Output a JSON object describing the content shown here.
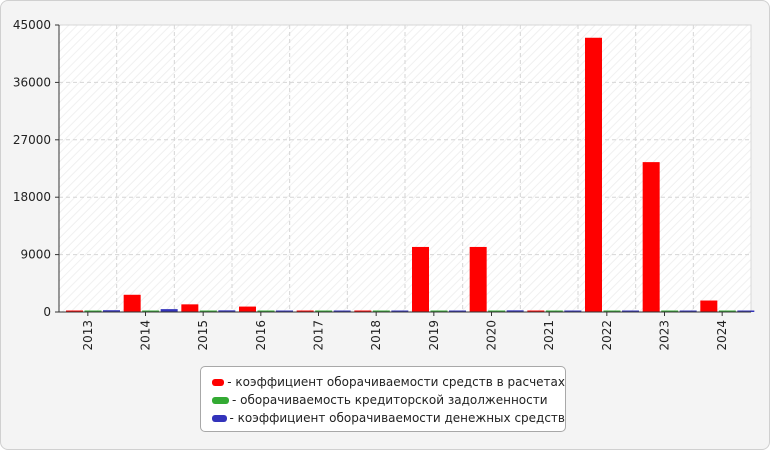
{
  "chart_data": {
    "type": "bar",
    "categories": [
      "2013",
      "2014",
      "2015",
      "2016",
      "2017",
      "2018",
      "2019",
      "2020",
      "2021",
      "2022",
      "2023",
      "2024"
    ],
    "series": [
      {
        "name": "- коэффициент оборачиваемости средств в расчетах",
        "color": "#ff0000",
        "values": [
          80,
          2700,
          1200,
          850,
          90,
          90,
          10200,
          10200,
          80,
          43000,
          23500,
          1800
        ]
      },
      {
        "name": "- оборачиваемость кредиторской задолженности",
        "color": "#33aa33",
        "values": [
          40,
          40,
          40,
          40,
          40,
          40,
          40,
          40,
          40,
          40,
          40,
          40
        ]
      },
      {
        "name": "- коэффициент оборачиваемости денежных средств",
        "color": "#3333bb",
        "values": [
          280,
          450,
          260,
          100,
          110,
          100,
          120,
          260,
          120,
          100,
          100,
          100
        ]
      }
    ],
    "yticks": [
      "0",
      "9000",
      "18000",
      "27000",
      "36000",
      "45000"
    ],
    "ylim": [
      0,
      45000
    ],
    "grid": true,
    "legend_position": "bottom"
  }
}
